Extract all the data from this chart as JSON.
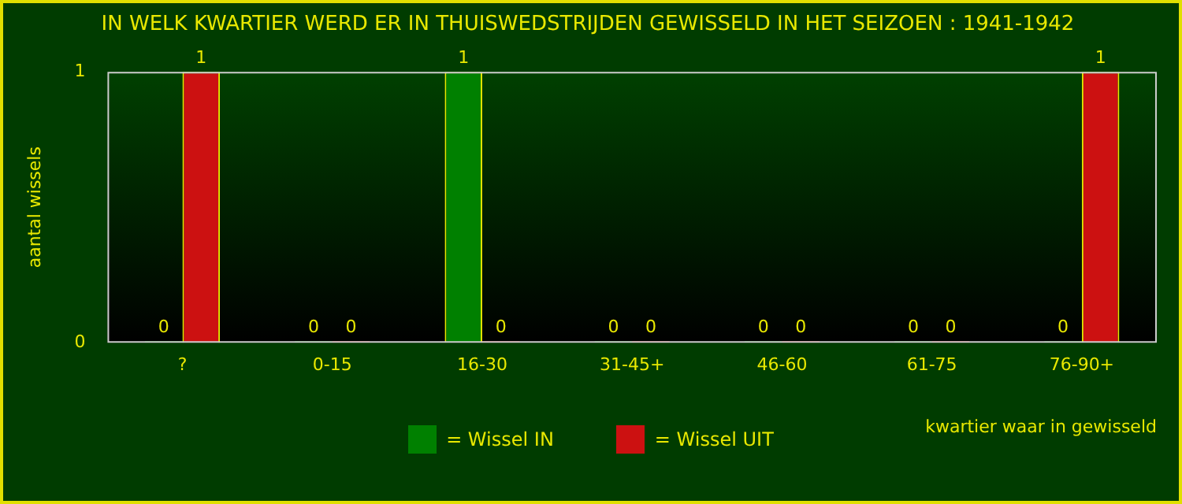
{
  "chart_data": {
    "type": "bar",
    "title": "IN WELK KWARTIER WERD ER IN THUISWEDSTRIJDEN GEWISSELD IN HET SEIZOEN : 1941-1942",
    "ylabel": "aantal wissels",
    "xlabel": "kwartier waar in gewisseld",
    "categories": [
      "?",
      "0-15",
      "16-30",
      "31-45+",
      "46-60",
      "61-75",
      "76-90+"
    ],
    "series": [
      {
        "name": "= Wissel IN",
        "color": "#008000",
        "values": [
          0,
          0,
          1,
          0,
          0,
          0,
          0
        ]
      },
      {
        "name": "= Wissel UIT",
        "color": "#cc1111",
        "values": [
          1,
          0,
          0,
          0,
          0,
          0,
          1
        ]
      }
    ],
    "ylim": [
      0,
      1
    ],
    "yticks": [
      0,
      1
    ],
    "grid": false,
    "legend": "bottom",
    "data_labels": true
  }
}
